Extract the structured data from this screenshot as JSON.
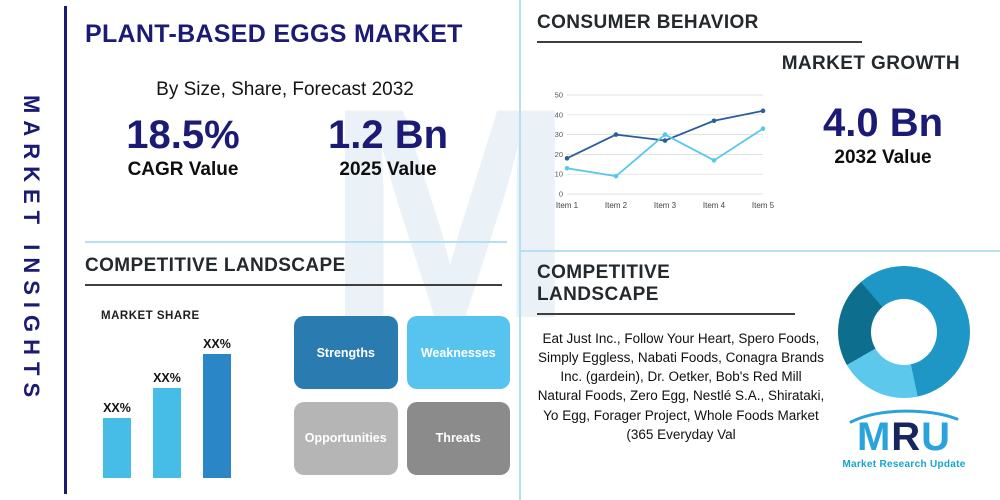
{
  "colors": {
    "navy": "#1b1a74",
    "divider_blue": "#b5e0f2",
    "heading_dark": "#23292d",
    "underline": "#3f3f3f"
  },
  "sidebar": {
    "label": "MARKET INSIGHTS"
  },
  "top_left": {
    "title": "PLANT-BASED EGGS MARKET",
    "subtitle": "By Size, Share, Forecast 2032",
    "stats": [
      {
        "value": "18.5%",
        "label": "CAGR Value"
      },
      {
        "value": "1.2 Bn",
        "label": "2025 Value"
      }
    ]
  },
  "top_right": {
    "heading": "CONSUMER BEHAVIOR",
    "subheading": "MARKET GROWTH",
    "stat": {
      "value": "4.0 Bn",
      "label": "2032 Value"
    }
  },
  "bottom_left": {
    "heading": "COMPETITIVE LANDSCAPE",
    "swot": [
      {
        "label": "Strengths",
        "color": "#2a7cb0"
      },
      {
        "label": "Weaknesses",
        "color": "#57c3ef"
      },
      {
        "label": "Opportunities",
        "color": "#b5b5b5"
      },
      {
        "label": "Threats",
        "color": "#8b8b8b"
      }
    ]
  },
  "bottom_right": {
    "heading": "COMPETITIVE LANDSCAPE",
    "companies": "Eat Just Inc., Follow Your Heart, Spero Foods, Simply Eggless, Nabati Foods, Conagra Brands Inc. (gardein), Dr. Oetker, Bob's Red Mill Natural Foods, Zero Egg, Nestlé S.A., Shirataki, Yo Egg, Forager Project, Whole Foods Market (365 Everyday Val"
  },
  "logo": {
    "letters": [
      {
        "ch": "M",
        "color": "#2aa3dd"
      },
      {
        "ch": "R",
        "color": "#16265e"
      },
      {
        "ch": "U",
        "color": "#2aa3dd"
      }
    ],
    "tagline": "Market Research Update",
    "tagline_color": "#14a5cf"
  },
  "watermark": "M",
  "chart_data": [
    {
      "name": "market-growth-line-chart",
      "type": "line",
      "categories": [
        "Item 1",
        "Item 2",
        "Item 3",
        "Item 4",
        "Item 5"
      ],
      "series": [
        {
          "name": "series-dark-blue",
          "color": "#2b5d9b",
          "values": [
            18,
            30,
            27,
            37,
            42
          ]
        },
        {
          "name": "series-light-blue",
          "color": "#57c8ec",
          "values": [
            13,
            9,
            30,
            17,
            33
          ]
        }
      ],
      "ylim": [
        0,
        50
      ],
      "yticks": [
        0,
        10,
        20,
        30,
        40,
        50
      ],
      "grid": true,
      "legend": "none"
    },
    {
      "name": "market-share-bar-chart",
      "type": "bar",
      "title": "MARKET SHARE",
      "categories": [
        "XX%",
        "XX%",
        "XX%"
      ],
      "values": [
        28,
        42,
        58
      ],
      "colors": [
        "#45bde6",
        "#45bde6",
        "#2b86c8"
      ],
      "ylim": [
        0,
        70
      ]
    },
    {
      "name": "company-share-donut-chart",
      "type": "pie",
      "donut": true,
      "start_angle": 240,
      "slices": [
        {
          "label": "segment-dark",
          "value": 22,
          "color": "#0e6e8d"
        },
        {
          "label": "segment-main",
          "value": 58,
          "color": "#1f97c6"
        },
        {
          "label": "segment-light",
          "value": 20,
          "color": "#5cc9ec"
        }
      ]
    }
  ]
}
